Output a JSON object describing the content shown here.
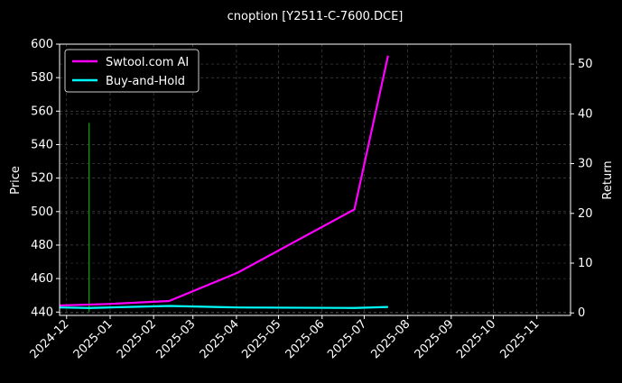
{
  "chart_data": {
    "type": "line",
    "title": "cnoption [Y2511-C-7600.DCE]",
    "ylabel": "Price",
    "y2label": "Return",
    "ylim": [
      438,
      600
    ],
    "y2lim": [
      -0.5,
      54
    ],
    "xlim": [
      "2024-11-26",
      "2025-11-25"
    ],
    "yticks": [
      440,
      460,
      480,
      500,
      520,
      540,
      560,
      580,
      600
    ],
    "y2ticks": [
      0,
      10,
      20,
      30,
      40,
      50
    ],
    "xticks": [
      "2024-12",
      "2025-01",
      "2025-02",
      "2025-03",
      "2025-04",
      "2025-05",
      "2025-06",
      "2025-07",
      "2025-08",
      "2025-09",
      "2025-10",
      "2025-11"
    ],
    "grid": true,
    "legend_position": "top-left",
    "series": [
      {
        "name": "Swtool.com AI",
        "axis": "right",
        "color": "#ff00ff",
        "x": [
          "2024-11-26",
          "2024-12-31",
          "2025-02-12",
          "2025-04-02",
          "2025-06-24",
          "2025-07-18"
        ],
        "values": [
          1.5,
          1.8,
          2.4,
          8.1,
          20.8,
          51.7
        ]
      },
      {
        "name": "Buy-and-Hold",
        "axis": "right",
        "color": "#00ffff",
        "x": [
          "2024-11-26",
          "2024-12-17",
          "2025-02-12",
          "2025-04-02",
          "2025-06-24",
          "2025-07-18"
        ],
        "values": [
          1.1,
          1.0,
          1.4,
          1.1,
          1.0,
          1.2
        ]
      }
    ],
    "bars": [
      {
        "axis": "left",
        "color": "#00aa00",
        "x": "2024-12-17",
        "from": 440,
        "to": 553
      }
    ]
  }
}
